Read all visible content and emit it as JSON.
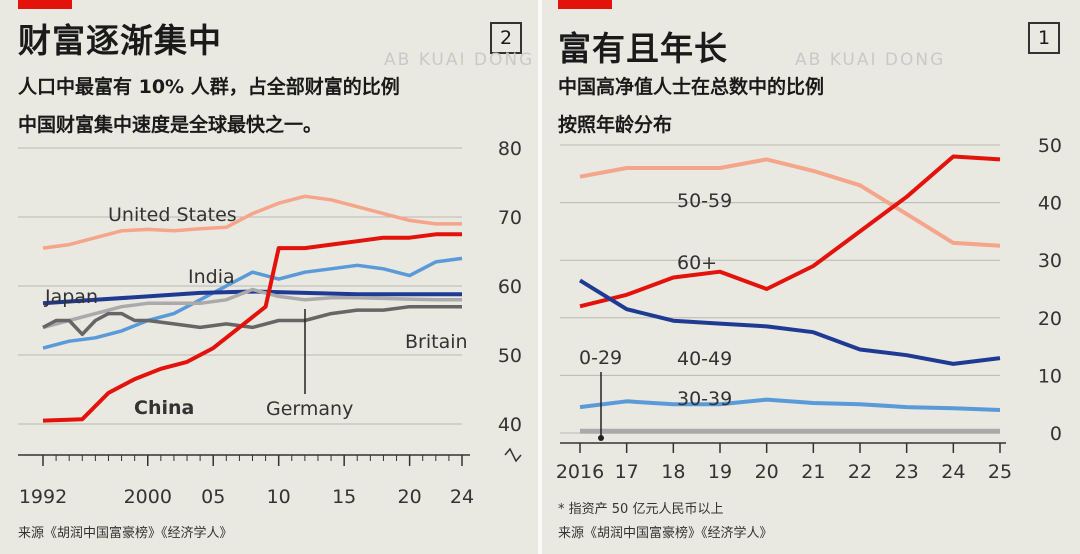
{
  "left": {
    "title": "财富逐渐集中",
    "badge": "2",
    "subtitle1": "人口中最富有 10% 人群，占全部财富的比例",
    "subtitle2": "中国财富集中速度是全球最快之一。",
    "watermark": "AB KUAI DONG",
    "source": "来源《胡润中国富豪榜》《经济学人》"
  },
  "right": {
    "title": "富有且年长",
    "badge": "1",
    "subtitle1": "中国高净值人士在总数中的比例",
    "subtitle2": "按照年龄分布",
    "watermark": "AB KUAI DONG",
    "note": "* 指资产 50 亿元人民币以上",
    "source": "来源《胡润中国富豪榜》《经济学人》"
  },
  "colors": {
    "red": "#e3120b",
    "navy": "#1f3a93",
    "lightblue": "#5a9ad8",
    "salmon": "#f4a58a",
    "gray": "#666666",
    "lightgray": "#aaaaaa"
  },
  "chart_data": [
    {
      "type": "line",
      "ylim": [
        38,
        80
      ],
      "xlim": [
        1992,
        2024
      ],
      "yticks": [
        "40",
        "50",
        "60",
        "70",
        "80"
      ],
      "xticks": [
        "1992",
        "2000",
        "05",
        "10",
        "15",
        "20",
        "24"
      ],
      "series": [
        {
          "name": "United States",
          "color": "#f4a58a",
          "x": [
            1992,
            1994,
            1996,
            1998,
            2000,
            2002,
            2004,
            2006,
            2008,
            2010,
            2012,
            2014,
            2016,
            2018,
            2020,
            2022,
            2024
          ],
          "y": [
            65.5,
            66,
            67,
            68,
            68.2,
            68,
            68.3,
            68.5,
            70.5,
            72,
            73,
            72.5,
            71.5,
            70.5,
            69.5,
            69,
            69
          ]
        },
        {
          "name": "India",
          "color": "#5a9ad8",
          "x": [
            1992,
            1994,
            1996,
            1998,
            2000,
            2002,
            2004,
            2006,
            2008,
            2010,
            2012,
            2014,
            2016,
            2018,
            2020,
            2022,
            2024
          ],
          "y": [
            51,
            52,
            52.5,
            53.5,
            55,
            56,
            58,
            60,
            62,
            61,
            62,
            62.5,
            63,
            62.5,
            61.5,
            63.5,
            64
          ]
        },
        {
          "name": "Japan",
          "color": "#1f3a93",
          "x": [
            1992,
            1996,
            2000,
            2004,
            2008,
            2012,
            2016,
            2020,
            2024
          ],
          "y": [
            57.5,
            58,
            58.5,
            59,
            59.2,
            59,
            58.8,
            58.8,
            58.8
          ]
        },
        {
          "name": "Germany",
          "color": "#aaaaaa",
          "x": [
            1992,
            1994,
            1996,
            1998,
            2000,
            2002,
            2004,
            2006,
            2008,
            2010,
            2012,
            2014,
            2016,
            2018,
            2020,
            2022,
            2024
          ],
          "y": [
            54,
            55,
            56,
            57,
            57.5,
            57.5,
            57.5,
            58,
            59.5,
            58.5,
            58,
            58.3,
            58.3,
            58.2,
            58.1,
            58,
            58
          ]
        },
        {
          "name": "Britain",
          "color": "#666666",
          "x": [
            1992,
            1993,
            1994,
            1995,
            1996,
            1997,
            1998,
            1999,
            2000,
            2002,
            2004,
            2006,
            2008,
            2010,
            2012,
            2014,
            2016,
            2018,
            2020,
            2022,
            2024
          ],
          "y": [
            54,
            55,
            55,
            53,
            55,
            56,
            56,
            55,
            55,
            54.5,
            54,
            54.5,
            54,
            55,
            55,
            56,
            56.5,
            56.5,
            57,
            57,
            57
          ]
        },
        {
          "name": "China",
          "color": "#e3120b",
          "x": [
            1992,
            1995,
            1997,
            1999,
            2001,
            2003,
            2005,
            2007,
            2009,
            2010,
            2012,
            2014,
            2016,
            2018,
            2020,
            2022,
            2024
          ],
          "y": [
            40.5,
            40.7,
            44.5,
            46.5,
            48,
            49,
            51,
            54,
            57,
            65.5,
            65.5,
            66,
            66.5,
            67,
            67,
            67.5,
            67.5
          ]
        }
      ],
      "annotations": [
        "United States",
        "India",
        "Japan",
        "Britain",
        "Germany",
        "China"
      ]
    },
    {
      "type": "line",
      "ylim": [
        0,
        50
      ],
      "xlim": [
        2016,
        2025
      ],
      "yticks": [
        "0",
        "10",
        "20",
        "30",
        "40",
        "50"
      ],
      "xticks": [
        "2016",
        "17",
        "18",
        "19",
        "20",
        "21",
        "22",
        "23",
        "24",
        "25"
      ],
      "series": [
        {
          "name": "50-59",
          "color": "#f4a58a",
          "x": [
            2016,
            2017,
            2018,
            2019,
            2020,
            2021,
            2022,
            2023,
            2024,
            2025
          ],
          "y": [
            44.5,
            46,
            46,
            46,
            47.5,
            45.5,
            43,
            38,
            33,
            32.5
          ]
        },
        {
          "name": "60+",
          "color": "#e3120b",
          "x": [
            2016,
            2017,
            2018,
            2019,
            2020,
            2021,
            2022,
            2023,
            2024,
            2025
          ],
          "y": [
            22,
            24,
            27,
            28,
            25,
            29,
            35,
            41,
            48,
            47.5
          ]
        },
        {
          "name": "40-49",
          "color": "#1f3a93",
          "x": [
            2016,
            2017,
            2018,
            2019,
            2020,
            2021,
            2022,
            2023,
            2024,
            2025
          ],
          "y": [
            26.5,
            21.5,
            19.5,
            19,
            18.5,
            17.5,
            14.5,
            13.5,
            12,
            13
          ]
        },
        {
          "name": "30-39",
          "color": "#5a9ad8",
          "x": [
            2016,
            2017,
            2018,
            2019,
            2020,
            2021,
            2022,
            2023,
            2024,
            2025
          ],
          "y": [
            4.5,
            5.5,
            5,
            5,
            5.8,
            5.2,
            5,
            4.5,
            4.3,
            4
          ]
        },
        {
          "name": "0-29",
          "color": "#aaaaaa",
          "x": [
            2016,
            2025
          ],
          "y": [
            0.3,
            0.3
          ]
        }
      ],
      "annotations": [
        "50-59",
        "60+",
        "40-49",
        "30-39",
        "0-29"
      ]
    }
  ]
}
